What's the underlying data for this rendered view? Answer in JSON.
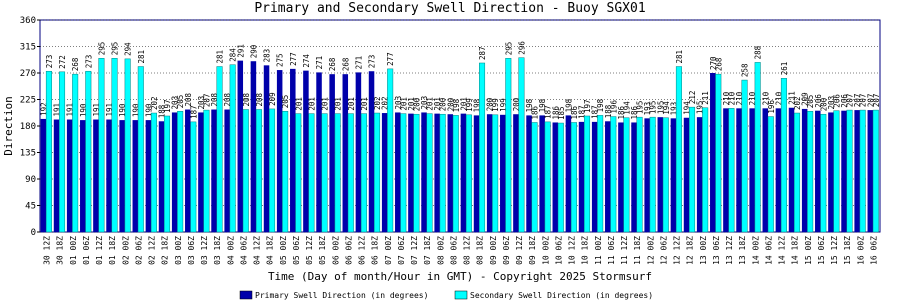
{
  "chart_data": {
    "type": "bar",
    "title": "Primary and Secondary Swell Direction - Buoy SGX01",
    "x_label": "Time (Day of month/Hour in GMT) - Copyright 2025 Stormsurf",
    "y_label": "Direction",
    "categories": [
      "30 12Z",
      "30 18Z",
      "01 00Z",
      "01 06Z",
      "01 12Z",
      "01 18Z",
      "02 00Z",
      "02 06Z",
      "02 12Z",
      "02 18Z",
      "03 00Z",
      "03 06Z",
      "03 12Z",
      "03 18Z",
      "04 00Z",
      "04 06Z",
      "04 12Z",
      "04 18Z",
      "05 00Z",
      "05 06Z",
      "05 12Z",
      "05 18Z",
      "06 00Z",
      "06 06Z",
      "06 12Z",
      "06 18Z",
      "07 00Z",
      "07 06Z",
      "07 12Z",
      "07 18Z",
      "08 00Z",
      "08 06Z",
      "08 12Z",
      "08 18Z",
      "09 00Z",
      "09 06Z",
      "09 12Z",
      "09 18Z",
      "10 00Z",
      "10 06Z",
      "10 12Z",
      "10 18Z",
      "11 00Z",
      "11 06Z",
      "11 12Z",
      "11 18Z",
      "12 00Z",
      "12 06Z",
      "12 12Z",
      "12 18Z",
      "13 00Z",
      "13 06Z",
      "13 12Z",
      "13 18Z",
      "14 00Z",
      "14 06Z",
      "14 12Z",
      "14 18Z",
      "15 00Z",
      "15 06Z",
      "15 12Z",
      "15 18Z",
      "16 00Z",
      "16 06Z"
    ],
    "series": [
      {
        "name": "Primary Swell Direction (in degrees)",
        "color": "#0000aa",
        "values": [
          192,
          191,
          191,
          190,
          191,
          191,
          190,
          190,
          190,
          188,
          203,
          208,
          203,
          208,
          208,
          291,
          290,
          283,
          275,
          277,
          274,
          271,
          268,
          268,
          271,
          273,
          202,
          203,
          201,
          203,
          201,
          200,
          201,
          198,
          200,
          199,
          200,
          198,
          198,
          186,
          198,
          187,
          187,
          188,
          186,
          186,
          193,
          195,
          193,
          194,
          195,
          270,
          210,
          210,
          210,
          210,
          210,
          211,
          209,
          206,
          203,
          206,
          207,
          207
        ]
      },
      {
        "name": "Secondary Swell Direction (in degrees)",
        "color": "#00ffff",
        "values": [
          273,
          272,
          268,
          273,
          295,
          295,
          294,
          281,
          202,
          197,
          205,
          187,
          207,
          281,
          284,
          208,
          208,
          209,
          205,
          201,
          201,
          201,
          201,
          201,
          201,
          202,
          277,
          201,
          200,
          201,
          200,
          198,
          199,
          287,
          199,
          295,
          296,
          186,
          187,
          185,
          186,
          197,
          198,
          196,
          194,
          195,
          195,
          194,
          281,
          212,
          211,
          268,
          210,
          258,
          288,
          196,
          261,
          202,
          205,
          200,
          206,
          207,
          207,
          207
        ]
      }
    ],
    "ylim": [
      0,
      360
    ],
    "yticks": [
      0,
      45,
      90,
      135,
      180,
      225,
      270,
      315,
      360
    ],
    "grid": true
  }
}
